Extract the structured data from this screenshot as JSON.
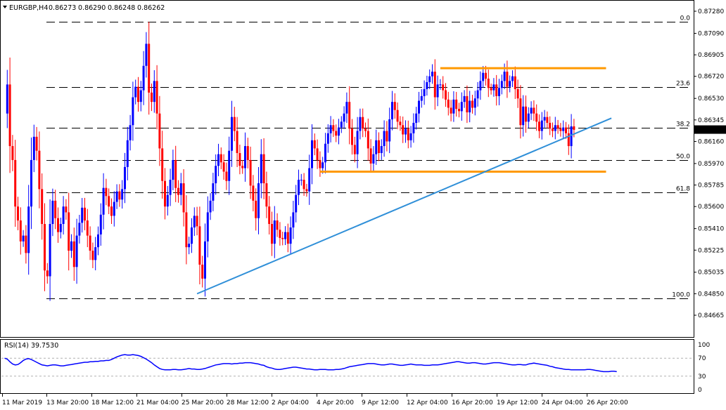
{
  "header": {
    "symbol": "EURGBP,H4",
    "ohlc": [
      "0.86273",
      "0.86290",
      "0.86248",
      "0.86262"
    ]
  },
  "rsi": {
    "label": "RSI(14) 39.7530",
    "levels": [
      100,
      70,
      30,
      0
    ],
    "values": [
      70,
      68,
      62,
      57,
      55,
      56,
      60,
      65,
      68,
      69,
      67,
      64,
      61,
      58,
      55,
      54,
      53,
      54,
      55,
      55,
      54,
      53,
      53,
      54,
      55,
      56,
      57,
      58,
      59,
      60,
      61,
      61,
      62,
      62,
      63,
      63,
      64,
      64,
      65,
      65,
      67,
      70,
      73,
      75,
      77,
      78,
      77,
      77,
      78,
      77,
      76,
      74,
      71,
      68,
      64,
      60,
      55,
      51,
      47,
      45,
      44,
      44,
      44,
      45,
      45,
      44,
      44,
      45,
      46,
      47,
      46,
      46,
      45,
      45,
      46,
      47,
      49,
      51,
      53,
      55,
      56,
      57,
      58,
      58,
      58,
      57,
      58,
      58,
      59,
      59,
      60,
      60,
      60,
      59,
      58,
      57,
      55,
      54,
      51,
      49,
      48,
      46,
      45,
      45,
      46,
      47,
      48,
      49,
      50,
      50,
      49,
      48,
      47,
      46,
      46,
      45,
      44,
      44,
      45,
      45,
      45,
      44,
      44,
      44,
      45,
      45,
      46,
      47,
      49,
      51,
      52,
      53,
      54,
      55,
      56,
      57,
      58,
      58,
      58,
      57,
      56,
      55,
      55,
      56,
      57,
      57,
      56,
      55,
      54,
      54,
      55,
      56,
      57,
      56,
      55,
      55,
      55,
      54,
      54,
      54,
      55,
      55,
      55,
      56,
      57,
      58,
      59,
      60,
      61,
      62,
      62,
      61,
      60,
      59,
      59,
      60,
      60,
      59,
      58,
      57,
      57,
      58,
      59,
      60,
      60,
      60,
      59,
      58,
      57,
      56,
      55,
      55,
      56,
      56,
      55,
      55,
      57,
      58,
      59,
      58,
      57,
      56,
      55,
      54,
      52,
      51,
      49,
      48,
      47,
      46,
      45,
      45,
      44,
      44,
      44,
      44,
      44,
      44,
      45,
      45,
      44,
      43,
      42,
      41,
      40,
      40,
      40,
      41,
      41,
      40
    ]
  },
  "chart_data": {
    "type": "candlestick",
    "title": "EURGBP,H4",
    "price_axis": [
      "0.87280",
      "0.87090",
      "0.86905",
      "0.86720",
      "0.86530",
      "0.86345",
      "0.86160",
      "0.85970",
      "0.85785",
      "0.85600",
      "0.85410",
      "0.85225",
      "0.85035",
      "0.84850",
      "0.84665"
    ],
    "current_price": "0.86262",
    "time_axis": [
      "11 Mar 2019",
      "13 Mar 20:00",
      "18 Mar 12:00",
      "21 Mar 04:00",
      "25 Mar 20:00",
      "28 Mar 12:00",
      "2 Apr 04:00",
      "4 Apr 20:00",
      "9 Apr 12:00",
      "12 Apr 04:00",
      "16 Apr 20:00",
      "19 Apr 12:00",
      "24 Apr 04:00",
      "26 Apr 20:00"
    ],
    "fibonacci": [
      {
        "label": "0.0",
        "price": 0.8719
      },
      {
        "label": "23.6",
        "price": 0.8663
      },
      {
        "label": "38.2",
        "price": 0.8628
      },
      {
        "label": "50.0",
        "price": 0.86
      },
      {
        "label": "61.8",
        "price": 0.8572
      },
      {
        "label": "100.0",
        "price": 0.8481
      }
    ],
    "support_resistance": [
      {
        "name": "resistance",
        "price": 0.8679,
        "from_bar": 163,
        "to_bar": 225
      },
      {
        "name": "support",
        "price": 0.859,
        "from_bar": 118,
        "to_bar": 225
      }
    ],
    "trendline": {
      "start_bar": 72,
      "start_price": 0.8485,
      "end_bar": 227,
      "end_price": 0.8636
    },
    "closes": [
      0.864,
      0.8665,
      0.8612,
      0.86,
      0.856,
      0.8548,
      0.853,
      0.8535,
      0.852,
      0.856,
      0.86,
      0.862,
      0.8608,
      0.8575,
      0.8545,
      0.8505,
      0.85,
      0.8545,
      0.8565,
      0.855,
      0.8538,
      0.8545,
      0.856,
      0.8555,
      0.8522,
      0.853,
      0.8508,
      0.8535,
      0.8546,
      0.8559,
      0.8548,
      0.8535,
      0.8522,
      0.8514,
      0.8525,
      0.8536,
      0.8553,
      0.8576,
      0.8569,
      0.856,
      0.8552,
      0.8564,
      0.8573,
      0.8566,
      0.8575,
      0.8594,
      0.8617,
      0.863,
      0.8654,
      0.8663,
      0.865,
      0.866,
      0.8681,
      0.87,
      0.8658,
      0.865,
      0.8668,
      0.864,
      0.861,
      0.8582,
      0.856,
      0.857,
      0.8583,
      0.86,
      0.8576,
      0.857,
      0.858,
      0.8555,
      0.8525,
      0.8528,
      0.8542,
      0.8552,
      0.8543,
      0.851,
      0.8498,
      0.853,
      0.8555,
      0.8565,
      0.858,
      0.8595,
      0.8605,
      0.8598,
      0.859,
      0.8582,
      0.8608,
      0.8637,
      0.8625,
      0.8606,
      0.8595,
      0.8593,
      0.8612,
      0.86,
      0.8578,
      0.8565,
      0.855,
      0.858,
      0.8605,
      0.858,
      0.856,
      0.8545,
      0.8528,
      0.8548,
      0.854,
      0.8533,
      0.8532,
      0.8538,
      0.8528,
      0.8542,
      0.8555,
      0.857,
      0.8583,
      0.8583,
      0.8575,
      0.8573,
      0.8593,
      0.8617,
      0.861,
      0.86,
      0.8593,
      0.8598,
      0.8614,
      0.8623,
      0.863,
      0.8625,
      0.8621,
      0.8628,
      0.8633,
      0.864,
      0.865,
      0.8627,
      0.8613,
      0.8605,
      0.8625,
      0.8637,
      0.8627,
      0.8625,
      0.861,
      0.8597,
      0.8605,
      0.8617,
      0.8606,
      0.8612,
      0.8625,
      0.8616,
      0.8635,
      0.865,
      0.8643,
      0.8633,
      0.863,
      0.8622,
      0.8627,
      0.8617,
      0.8623,
      0.8632,
      0.864,
      0.8651,
      0.8655,
      0.8661,
      0.8667,
      0.8672,
      0.8676,
      0.8654,
      0.8665,
      0.8665,
      0.866,
      0.8652,
      0.8645,
      0.864,
      0.8652,
      0.8644,
      0.8642,
      0.865,
      0.8655,
      0.8641,
      0.8651,
      0.8645,
      0.8653,
      0.866,
      0.8668,
      0.8675,
      0.867,
      0.8662,
      0.866,
      0.8665,
      0.8655,
      0.8662,
      0.8668,
      0.8676,
      0.8663,
      0.8668,
      0.8672,
      0.8661,
      0.8653,
      0.863,
      0.8646,
      0.8633,
      0.864,
      0.8645,
      0.864,
      0.8633,
      0.8625,
      0.8634,
      0.8637,
      0.8632,
      0.8627,
      0.8625,
      0.863,
      0.8627,
      0.8625,
      0.8628,
      0.8623,
      0.8612,
      0.8629,
      0.8626
    ],
    "colors": {
      "bull": "#0000ff",
      "bear": "#ff0000",
      "support_resistance": "#ff9900",
      "trendline": "#2f8fd8",
      "rsi": "#0000ff"
    }
  }
}
